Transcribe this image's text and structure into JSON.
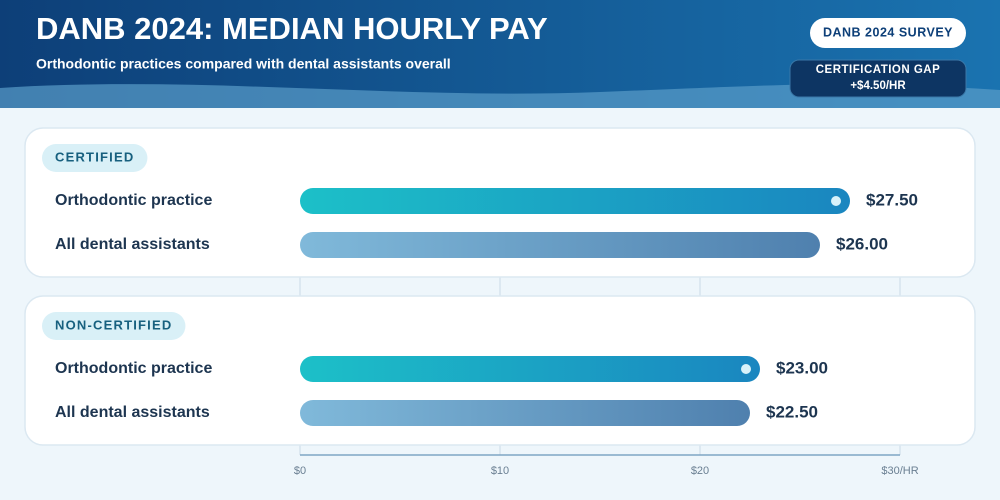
{
  "chart_data": {
    "type": "bar",
    "orientation": "horizontal",
    "title": "DANB 2024: MEDIAN HOURLY PAY",
    "subtitle": "Orthodontic practices compared with dental assistants overall",
    "badge": "DANB 2024 SURVEY",
    "annotations": [
      "CERTIFICATION GAP",
      "+$4.50/HR"
    ],
    "categories": [
      "CERTIFIED",
      "NON-CERTIFIED"
    ],
    "series": [
      {
        "name": "Orthodontic practice",
        "colors": [
          "#1cc0c8",
          "#1a86c0"
        ],
        "values": [
          27.5,
          23
        ],
        "value_labels": [
          "$27.50",
          "$23.00"
        ]
      },
      {
        "name": "All dental assistants",
        "colors": [
          "#80b9da",
          "#4f80ae"
        ],
        "values": [
          26,
          22.5
        ],
        "value_labels": [
          "$26.00",
          "$22.50"
        ]
      }
    ],
    "xlim": [
      0,
      30
    ],
    "xticks": [
      {
        "value": 0,
        "label": "$0"
      },
      {
        "value": 10,
        "label": "$10"
      },
      {
        "value": 20,
        "label": "$20"
      },
      {
        "value": 30,
        "label": "$30/HR"
      }
    ],
    "grid": true
  }
}
